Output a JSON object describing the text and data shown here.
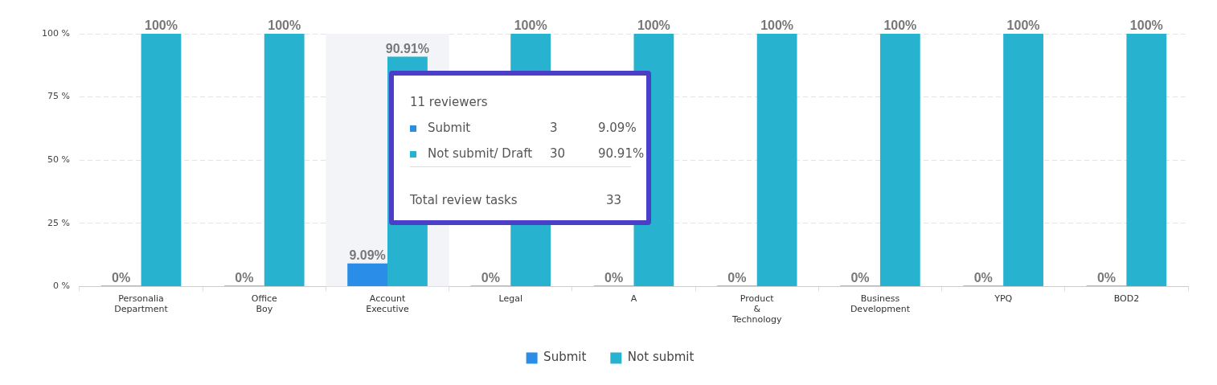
{
  "chart_data": {
    "type": "bar",
    "categories": [
      "Personalia Department",
      "Office Boy",
      "Account Executive",
      "Legal",
      "A",
      "Product & Technology",
      "Business Development",
      "YPQ",
      "BOD2"
    ],
    "series": [
      {
        "name": "Submit",
        "color": "#2a8ee8",
        "values": [
          0,
          0,
          9.09,
          0,
          0,
          0,
          0,
          0,
          0
        ],
        "value_labels": [
          "0%",
          "0%",
          "9.09%",
          "0%",
          "0%",
          "0%",
          "0%",
          "0%",
          "0%"
        ]
      },
      {
        "name": "Not submit",
        "color": "#27b2cf",
        "values": [
          100,
          100,
          90.91,
          100,
          100,
          100,
          100,
          100,
          100
        ],
        "value_labels": [
          "100%",
          "100%",
          "90.91%",
          "100%",
          "100%",
          "100%",
          "100%",
          "100%",
          "100%"
        ]
      }
    ],
    "ylim": [
      0,
      100
    ],
    "yticks": [
      {
        "value": 0,
        "label": "0 %"
      },
      {
        "value": 25,
        "label": "25 %"
      },
      {
        "value": 50,
        "label": "50 %"
      },
      {
        "value": 75,
        "label": "75 %"
      },
      {
        "value": 100,
        "label": "100 %"
      }
    ],
    "grid": "y",
    "legend": "bottom",
    "bands": [
      {
        "axis": "x",
        "from": "Account Executive",
        "to": "Account Executive",
        "color": "#f2f4f8"
      }
    ],
    "annotations": [
      "11 reviewers",
      "Submit",
      "3",
      "9.09%",
      "Not submit/ Draft",
      "30",
      "90.91%",
      "Total review tasks",
      "33"
    ]
  }
}
